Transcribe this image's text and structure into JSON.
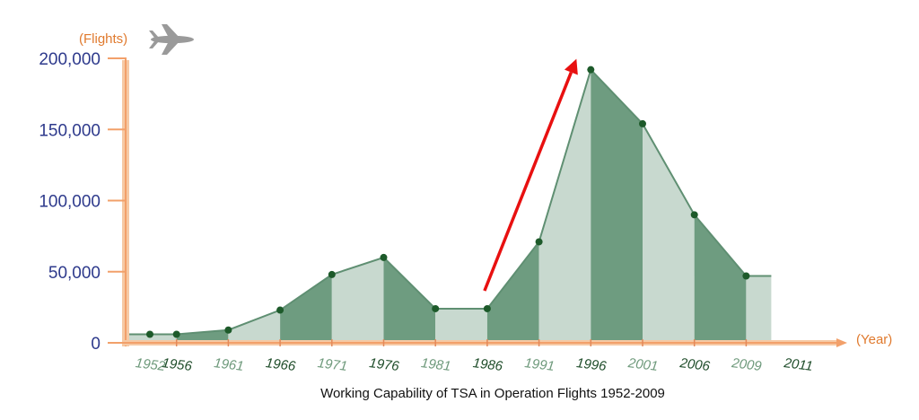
{
  "chart_data": {
    "type": "area",
    "title": "Working Capability of TSA in Operation Flights 1952-2009",
    "y_unit": "(Flights)",
    "x_unit": "(Year)",
    "ylim": [
      0,
      200000
    ],
    "y_ticks": [
      {
        "value": 0,
        "label": "0"
      },
      {
        "value": 50000,
        "label": "50,000"
      },
      {
        "value": 100000,
        "label": "100,000"
      },
      {
        "value": 150000,
        "label": "150,000"
      },
      {
        "value": 200000,
        "label": "200,000"
      }
    ],
    "x_tick_labels": [
      "1952",
      "1956",
      "1961",
      "1966",
      "1971",
      "1976",
      "1981",
      "1986",
      "1991",
      "1996",
      "2001",
      "2006",
      "2009",
      "2011"
    ],
    "points": [
      {
        "x": "1952",
        "y": 6000
      },
      {
        "x": "1956",
        "y": 6000
      },
      {
        "x": "1961",
        "y": 9000
      },
      {
        "x": "1966",
        "y": 23000
      },
      {
        "x": "1971",
        "y": 48000
      },
      {
        "x": "1976",
        "y": 60000
      },
      {
        "x": "1981",
        "y": 24000
      },
      {
        "x": "1986",
        "y": 24000
      },
      {
        "x": "1991",
        "y": 71000
      },
      {
        "x": "1996",
        "y": 192000
      },
      {
        "x": "2001",
        "y": 154000
      },
      {
        "x": "2006",
        "y": 90000
      },
      {
        "x": "2009",
        "y": 47000
      }
    ],
    "series_end": {
      "x": "2009",
      "y": 47000
    },
    "highlight_arrow": {
      "from": "1986",
      "to": "1996",
      "color": "#e81010"
    },
    "grid": false,
    "legend": "none",
    "colors": {
      "fill_light": "#c8d9cf",
      "fill_dark": "#6e9c80",
      "line": "#5f8f72",
      "point": "#1d5a2a",
      "axis": "#f2a06a",
      "y_tick_text": "#2e3a8c",
      "unit_text": "#e07a2e",
      "x_tick_light": "#6f9a7c",
      "x_tick_dark": "#1f4d2a",
      "plane_icon": "#9a9a9a"
    }
  },
  "decor": {
    "plane_icon": "airplane-icon"
  }
}
